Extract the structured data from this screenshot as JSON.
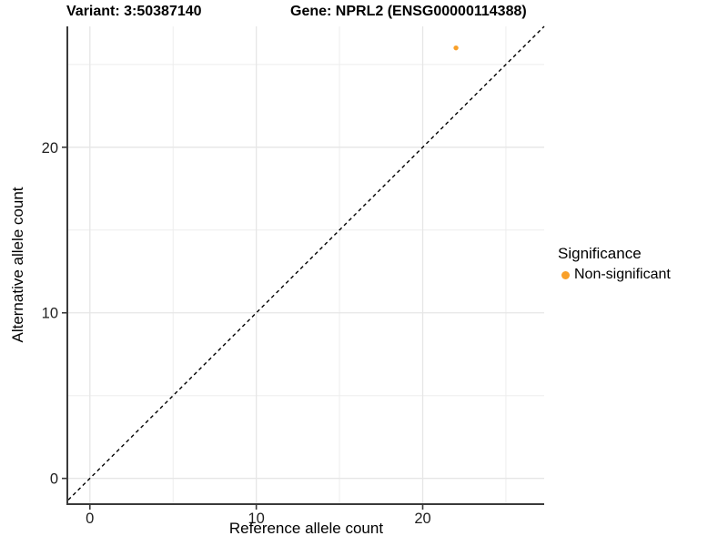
{
  "titles": {
    "variant": "Variant: 3:50387140",
    "gene": "Gene: NPRL2 (ENSG00000114388)"
  },
  "chart_data": {
    "type": "scatter",
    "title": "",
    "xlabel": "Reference allele count",
    "ylabel": "Alternative allele count",
    "xlim": [
      -1.3,
      27.3
    ],
    "ylim": [
      -1.5,
      27.3
    ],
    "x_ticks": [
      0,
      10,
      20
    ],
    "y_ticks": [
      0,
      10,
      20
    ],
    "x_minor_ticks": [
      5,
      15,
      25
    ],
    "y_minor_ticks": [
      5,
      15,
      25
    ],
    "grid": true,
    "points": [
      {
        "x": 22,
        "y": 26,
        "series": "Non-significant"
      }
    ],
    "abline": {
      "slope": 1,
      "intercept": 0,
      "style": "dashed"
    },
    "legend": {
      "title": "Significance",
      "position": "right",
      "entries": [
        {
          "label": "Non-significant",
          "color": "#F9A029"
        }
      ]
    }
  },
  "colors": {
    "point": "#F9A029",
    "grid_major": "#E6E6E6",
    "grid_minor": "#EDEDED",
    "axis_line": "#3A3A3A",
    "tick_label": "#1F1F1F",
    "abline": "#000000",
    "background": "#FFFFFF"
  }
}
